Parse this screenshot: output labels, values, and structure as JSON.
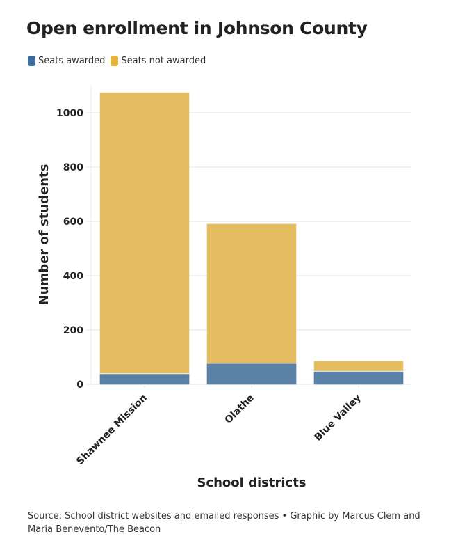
{
  "title": "Open enrollment in Johnson County",
  "legend": [
    {
      "label": "Seats awarded",
      "color": "#4e79a7"
    },
    {
      "label": "Seats not awarded",
      "color": "#e6b84a"
    }
  ],
  "footer": {
    "text": "Source: School district websites and emailed responses • Graphic by Marcus Clem and Maria Benevento/The Beacon"
  },
  "chart_data": {
    "type": "bar",
    "stacked": true,
    "title": "Open enrollment in Johnson County",
    "xlabel": "School districts",
    "ylabel": "Number of students",
    "categories": [
      "Shawnee Mission",
      "Olathe",
      "Blue Valley"
    ],
    "series": [
      {
        "name": "Seats awarded",
        "color": "#5b82a6",
        "values": [
          37,
          75,
          46
        ]
      },
      {
        "name": "Seats not awarded",
        "color": "#e5bc60",
        "values": [
          1037,
          515,
          39
        ]
      }
    ],
    "totals": [
      1074,
      590,
      85
    ],
    "ylim": [
      0,
      1100
    ],
    "yticks": [
      0,
      200,
      400,
      600,
      800,
      1000
    ],
    "grid": true,
    "legend_position": "top-left",
    "x_tick_rotation": "-45deg"
  }
}
